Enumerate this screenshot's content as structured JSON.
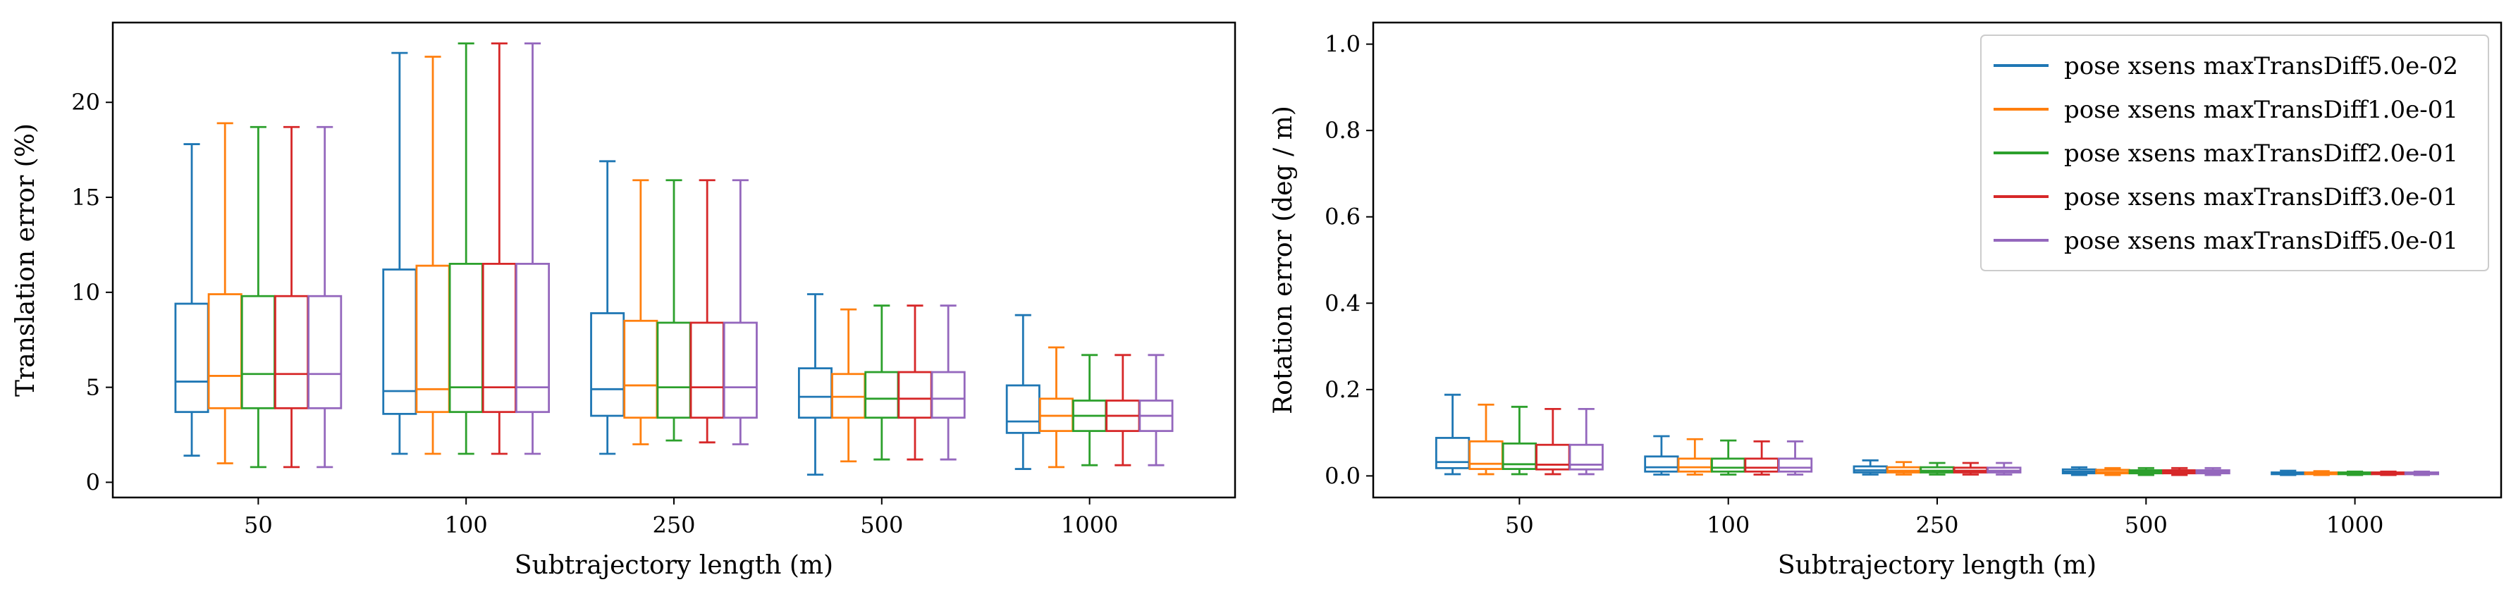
{
  "chart_data": [
    {
      "type": "box",
      "xlabel": "Subtrajectory length (m)",
      "ylabel": "Translation error (%)",
      "categories": [
        "50",
        "100",
        "250",
        "500",
        "1000"
      ],
      "ylim": [
        -0.8,
        24.2
      ],
      "yticks": [
        0,
        5,
        10,
        15,
        20
      ],
      "legend": "none",
      "series": [
        {
          "name": "pose xsens maxTransDiff5.0e-02",
          "color": "#1f77b4",
          "boxes": [
            {
              "whislo": 1.4,
              "q1": 3.7,
              "med": 5.3,
              "q3": 9.4,
              "whishi": 17.8
            },
            {
              "whislo": 1.5,
              "q1": 3.6,
              "med": 4.8,
              "q3": 11.2,
              "whishi": 22.6
            },
            {
              "whislo": 1.5,
              "q1": 3.5,
              "med": 4.9,
              "q3": 8.9,
              "whishi": 16.9
            },
            {
              "whislo": 0.4,
              "q1": 3.4,
              "med": 4.5,
              "q3": 6.0,
              "whishi": 9.9
            },
            {
              "whislo": 0.7,
              "q1": 2.6,
              "med": 3.2,
              "q3": 5.1,
              "whishi": 8.8
            }
          ]
        },
        {
          "name": "pose xsens maxTransDiff1.0e-01",
          "color": "#ff7f0e",
          "boxes": [
            {
              "whislo": 1.0,
              "q1": 3.9,
              "med": 5.6,
              "q3": 9.9,
              "whishi": 18.9
            },
            {
              "whislo": 1.5,
              "q1": 3.7,
              "med": 4.9,
              "q3": 11.4,
              "whishi": 22.4
            },
            {
              "whislo": 2.0,
              "q1": 3.4,
              "med": 5.1,
              "q3": 8.5,
              "whishi": 15.9
            },
            {
              "whislo": 1.1,
              "q1": 3.4,
              "med": 4.5,
              "q3": 5.7,
              "whishi": 9.1
            },
            {
              "whislo": 0.8,
              "q1": 2.7,
              "med": 3.5,
              "q3": 4.4,
              "whishi": 7.1
            }
          ]
        },
        {
          "name": "pose xsens maxTransDiff2.0e-01",
          "color": "#2ca02c",
          "boxes": [
            {
              "whislo": 0.8,
              "q1": 3.9,
              "med": 5.7,
              "q3": 9.8,
              "whishi": 18.7
            },
            {
              "whislo": 1.5,
              "q1": 3.7,
              "med": 5.0,
              "q3": 11.5,
              "whishi": 23.1
            },
            {
              "whislo": 2.2,
              "q1": 3.4,
              "med": 5.0,
              "q3": 8.4,
              "whishi": 15.9
            },
            {
              "whislo": 1.2,
              "q1": 3.4,
              "med": 4.4,
              "q3": 5.8,
              "whishi": 9.3
            },
            {
              "whislo": 0.9,
              "q1": 2.7,
              "med": 3.5,
              "q3": 4.3,
              "whishi": 6.7
            }
          ]
        },
        {
          "name": "pose xsens maxTransDiff3.0e-01",
          "color": "#d62728",
          "boxes": [
            {
              "whislo": 0.8,
              "q1": 3.9,
              "med": 5.7,
              "q3": 9.8,
              "whishi": 18.7
            },
            {
              "whislo": 1.5,
              "q1": 3.7,
              "med": 5.0,
              "q3": 11.5,
              "whishi": 23.1
            },
            {
              "whislo": 2.1,
              "q1": 3.4,
              "med": 5.0,
              "q3": 8.4,
              "whishi": 15.9
            },
            {
              "whislo": 1.2,
              "q1": 3.4,
              "med": 4.4,
              "q3": 5.8,
              "whishi": 9.3
            },
            {
              "whislo": 0.9,
              "q1": 2.7,
              "med": 3.5,
              "q3": 4.3,
              "whishi": 6.7
            }
          ]
        },
        {
          "name": "pose xsens maxTransDiff5.0e-01",
          "color": "#9467bd",
          "boxes": [
            {
              "whislo": 0.8,
              "q1": 3.9,
              "med": 5.7,
              "q3": 9.8,
              "whishi": 18.7
            },
            {
              "whislo": 1.5,
              "q1": 3.7,
              "med": 5.0,
              "q3": 11.5,
              "whishi": 23.1
            },
            {
              "whislo": 2.0,
              "q1": 3.4,
              "med": 5.0,
              "q3": 8.4,
              "whishi": 15.9
            },
            {
              "whislo": 1.2,
              "q1": 3.4,
              "med": 4.4,
              "q3": 5.8,
              "whishi": 9.3
            },
            {
              "whislo": 0.9,
              "q1": 2.7,
              "med": 3.5,
              "q3": 4.3,
              "whishi": 6.7
            }
          ]
        }
      ]
    },
    {
      "type": "box",
      "xlabel": "Subtrajectory length (m)",
      "ylabel": "Rotation error (deg / m)",
      "categories": [
        "50",
        "100",
        "250",
        "500",
        "1000"
      ],
      "ylim": [
        -0.05,
        1.05
      ],
      "yticks": [
        "0.0",
        "0.2",
        "0.4",
        "0.6",
        "0.8",
        "1.0"
      ],
      "legend": "top-right",
      "series": [
        {
          "name": "pose xsens maxTransDiff5.0e-02",
          "color": "#1f77b4",
          "boxes": [
            {
              "whislo": 0.004,
              "q1": 0.018,
              "med": 0.032,
              "q3": 0.088,
              "whishi": 0.188
            },
            {
              "whislo": 0.003,
              "q1": 0.01,
              "med": 0.02,
              "q3": 0.045,
              "whishi": 0.092
            },
            {
              "whislo": 0.003,
              "q1": 0.008,
              "med": 0.013,
              "q3": 0.022,
              "whishi": 0.036
            },
            {
              "whislo": 0.002,
              "q1": 0.006,
              "med": 0.01,
              "q3": 0.015,
              "whishi": 0.02
            },
            {
              "whislo": 0.002,
              "q1": 0.004,
              "med": 0.006,
              "q3": 0.008,
              "whishi": 0.012
            }
          ]
        },
        {
          "name": "pose xsens maxTransDiff1.0e-01",
          "color": "#ff7f0e",
          "boxes": [
            {
              "whislo": 0.004,
              "q1": 0.016,
              "med": 0.028,
              "q3": 0.08,
              "whishi": 0.165
            },
            {
              "whislo": 0.003,
              "q1": 0.01,
              "med": 0.02,
              "q3": 0.04,
              "whishi": 0.085
            },
            {
              "whislo": 0.003,
              "q1": 0.008,
              "med": 0.012,
              "q3": 0.02,
              "whishi": 0.032
            },
            {
              "whislo": 0.002,
              "q1": 0.006,
              "med": 0.009,
              "q3": 0.014,
              "whishi": 0.018
            },
            {
              "whislo": 0.002,
              "q1": 0.004,
              "med": 0.006,
              "q3": 0.008,
              "whishi": 0.011
            }
          ]
        },
        {
          "name": "pose xsens maxTransDiff2.0e-01",
          "color": "#2ca02c",
          "boxes": [
            {
              "whislo": 0.004,
              "q1": 0.016,
              "med": 0.027,
              "q3": 0.075,
              "whishi": 0.16
            },
            {
              "whislo": 0.003,
              "q1": 0.01,
              "med": 0.019,
              "q3": 0.04,
              "whishi": 0.082
            },
            {
              "whislo": 0.003,
              "q1": 0.008,
              "med": 0.012,
              "q3": 0.02,
              "whishi": 0.03
            },
            {
              "whislo": 0.002,
              "q1": 0.006,
              "med": 0.009,
              "q3": 0.013,
              "whishi": 0.018
            },
            {
              "whislo": 0.002,
              "q1": 0.004,
              "med": 0.006,
              "q3": 0.008,
              "whishi": 0.01
            }
          ]
        },
        {
          "name": "pose xsens maxTransDiff3.0e-01",
          "color": "#d62728",
          "boxes": [
            {
              "whislo": 0.004,
              "q1": 0.015,
              "med": 0.026,
              "q3": 0.072,
              "whishi": 0.155
            },
            {
              "whislo": 0.003,
              "q1": 0.01,
              "med": 0.019,
              "q3": 0.04,
              "whishi": 0.08
            },
            {
              "whislo": 0.003,
              "q1": 0.008,
              "med": 0.012,
              "q3": 0.019,
              "whishi": 0.03
            },
            {
              "whislo": 0.002,
              "q1": 0.006,
              "med": 0.009,
              "q3": 0.013,
              "whishi": 0.018
            },
            {
              "whislo": 0.002,
              "q1": 0.004,
              "med": 0.006,
              "q3": 0.008,
              "whishi": 0.01
            }
          ]
        },
        {
          "name": "pose xsens maxTransDiff5.0e-01",
          "color": "#9467bd",
          "boxes": [
            {
              "whislo": 0.004,
              "q1": 0.015,
              "med": 0.026,
              "q3": 0.072,
              "whishi": 0.155
            },
            {
              "whislo": 0.003,
              "q1": 0.01,
              "med": 0.019,
              "q3": 0.04,
              "whishi": 0.08
            },
            {
              "whislo": 0.003,
              "q1": 0.008,
              "med": 0.012,
              "q3": 0.019,
              "whishi": 0.03
            },
            {
              "whislo": 0.002,
              "q1": 0.006,
              "med": 0.009,
              "q3": 0.013,
              "whishi": 0.018
            },
            {
              "whislo": 0.002,
              "q1": 0.004,
              "med": 0.006,
              "q3": 0.008,
              "whishi": 0.01
            }
          ]
        }
      ]
    }
  ]
}
